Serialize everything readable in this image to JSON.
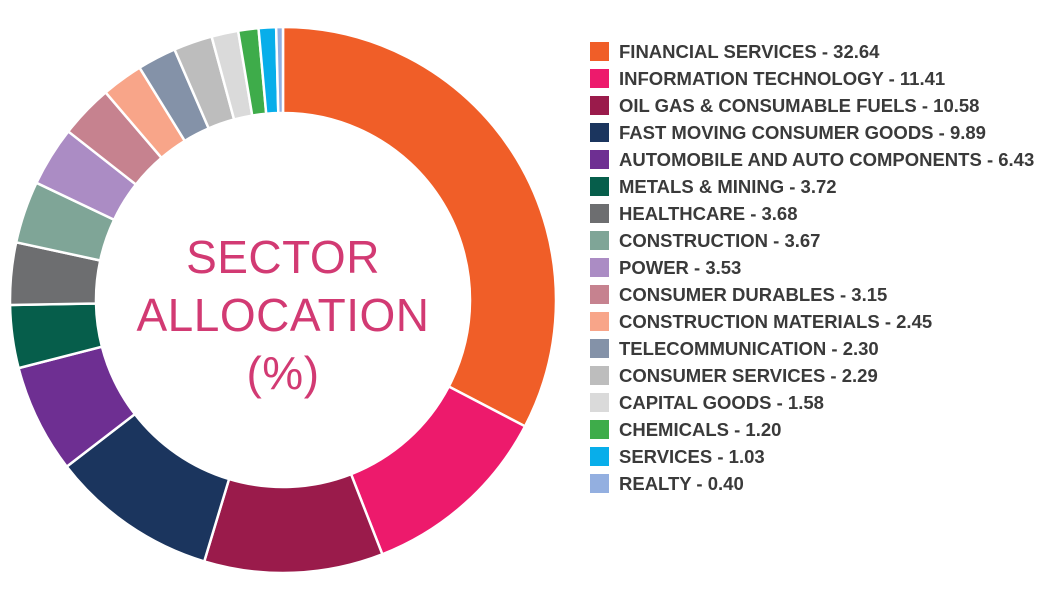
{
  "center_title": {
    "line1": "SECTOR",
    "line2": "ALLOCATION",
    "line3": "(%)"
  },
  "chart_data": {
    "type": "pie",
    "donut": true,
    "legend_position": "right",
    "labels": [
      "FINANCIAL SERVICES - 32.64",
      "INFORMATION TECHNOLOGY - 11.41",
      "OIL GAS & CONSUMABLE FUELS - 10.58",
      "FAST MOVING CONSUMER GOODS - 9.89",
      "AUTOMOBILE AND AUTO COMPONENTS - 6.43",
      "METALS & MINING - 3.72",
      "HEALTHCARE - 3.68",
      "CONSTRUCTION - 3.67",
      "POWER - 3.53",
      "CONSUMER DURABLES - 3.15",
      "CONSTRUCTION MATERIALS - 2.45",
      "TELECOMMUNICATION - 2.30",
      "CONSUMER SERVICES - 2.29",
      "CAPITAL GOODS - 1.58",
      "CHEMICALS  - 1.20",
      "SERVICES  - 1.03",
      "REALTY  - 0.40"
    ],
    "values": [
      32.64,
      11.41,
      10.58,
      9.89,
      6.43,
      3.72,
      3.68,
      3.67,
      3.53,
      3.15,
      2.45,
      2.3,
      2.29,
      1.58,
      1.2,
      1.03,
      0.4
    ],
    "colors": [
      "#f05e28",
      "#ed1a6c",
      "#9a1b4b",
      "#1b355e",
      "#6e2f92",
      "#065e4b",
      "#6d6e70",
      "#7fa597",
      "#ab8cc4",
      "#c6828f",
      "#f8a589",
      "#8492a8",
      "#bdbdbd",
      "#dadada",
      "#3eac4a",
      "#08aeea",
      "#93afe0"
    ]
  }
}
